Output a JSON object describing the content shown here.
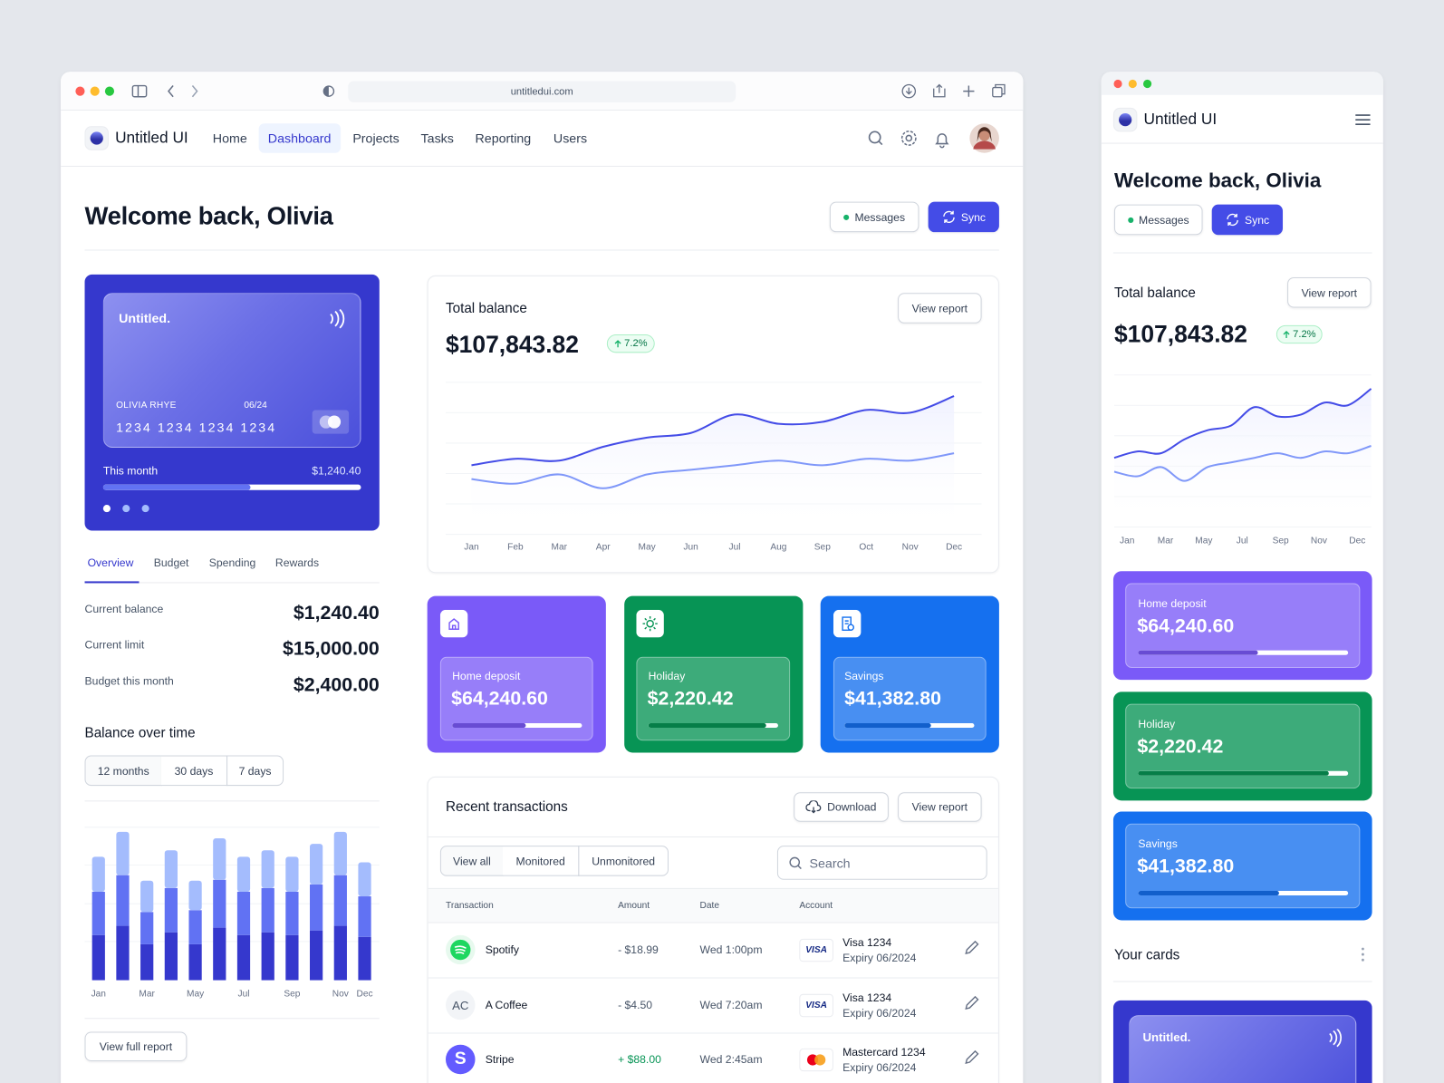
{
  "browser": {
    "url": "untitledui.com"
  },
  "nav": {
    "brand": "Untitled UI",
    "links": [
      "Home",
      "Dashboard",
      "Projects",
      "Tasks",
      "Reporting",
      "Users"
    ],
    "active": 1
  },
  "header": {
    "title": "Welcome back, Olivia",
    "messages": "Messages",
    "sync": "Sync"
  },
  "card": {
    "brand": "Untitled.",
    "holder": "OLIVIA RHYE",
    "expiry": "06/24",
    "number": "1234 1234 1234 1234",
    "spend_label": "This month",
    "spend_value": "$1,240.40",
    "spend_progress": 57
  },
  "tabs": [
    "Overview",
    "Budget",
    "Spending",
    "Rewards"
  ],
  "stats": [
    {
      "label": "Current balance",
      "value": "$1,240.40"
    },
    {
      "label": "Current limit",
      "value": "$15,000.00"
    },
    {
      "label": "Budget this month",
      "value": "$2,400.00"
    }
  ],
  "balance_filters": [
    "12 months",
    "30 days",
    "7 days"
  ],
  "view_full_report": "View full report",
  "view_report": "View report",
  "chart_data": [
    {
      "type": "bar",
      "stacked": true,
      "title": "Balance over time",
      "categories": [
        "Jan",
        null,
        "Mar",
        null,
        "May",
        null,
        "Jul",
        null,
        "Sep",
        null,
        "Nov",
        "Dec"
      ],
      "series": [
        {
          "color": "#3538cd",
          "values": [
            49,
            59,
            39,
            52,
            39,
            57,
            49,
            52,
            49,
            54,
            59,
            47
          ]
        },
        {
          "color": "#6172f3",
          "values": [
            47,
            55,
            35,
            48,
            37,
            52,
            47,
            48,
            47,
            50,
            55,
            44
          ]
        },
        {
          "color": "#a4bcfd",
          "values": [
            38,
            47,
            34,
            41,
            32,
            45,
            38,
            41,
            38,
            44,
            47,
            37
          ]
        }
      ],
      "ylim": [
        0,
        170
      ]
    },
    {
      "type": "line",
      "title": "Total balance",
      "total": "$107,843.82",
      "change": "7.2%",
      "categories": [
        "Jan",
        "Feb",
        "Mar",
        "Apr",
        "May",
        "Jun",
        "Jul",
        "Aug",
        "Sep",
        "Oct",
        "Nov",
        "Dec"
      ],
      "series": [
        {
          "color": "#444ce7",
          "values": [
            75,
            82,
            80,
            95,
            105,
            110,
            130,
            120,
            122,
            135,
            132,
            150
          ]
        },
        {
          "color": "#8098f9",
          "values": [
            60,
            55,
            65,
            50,
            65,
            70,
            75,
            80,
            75,
            82,
            80,
            88
          ]
        }
      ],
      "ylim": [
        0,
        165
      ]
    }
  ],
  "goals": [
    {
      "label": "Home deposit",
      "value": "$64,240.60",
      "progress": 57,
      "color": "#7a5af8"
    },
    {
      "label": "Holiday",
      "value": "$2,220.42",
      "progress": 91,
      "color": "#079455"
    },
    {
      "label": "Savings",
      "value": "$41,382.80",
      "progress": 67,
      "color": "#1570ef"
    }
  ],
  "transactions": {
    "title": "Recent transactions",
    "download": "Download",
    "filters": [
      "View all",
      "Monitored",
      "Unmonitored"
    ],
    "search": "Search",
    "columns": [
      "Transaction",
      "Amount",
      "Date",
      "Account"
    ],
    "rows": [
      {
        "name": "Spotify",
        "amount": "- $18.99",
        "date": "Wed 1:00pm",
        "card_mark": "VISA",
        "account": "Visa 1234",
        "expiry": "Expiry 06/2024"
      },
      {
        "initials": "AC",
        "name": "A Coffee",
        "amount": "- $4.50",
        "date": "Wed 7:20am",
        "card_mark": "VISA",
        "account": "Visa 1234",
        "expiry": "Expiry 06/2024"
      },
      {
        "initials": "S",
        "name": "Stripe",
        "amount": "+ $88.00",
        "date": "Wed 2:45am",
        "account": "Mastercard 1234",
        "expiry": "Expiry 06/2024"
      }
    ]
  },
  "mobile": {
    "cards_title": "Your cards"
  }
}
